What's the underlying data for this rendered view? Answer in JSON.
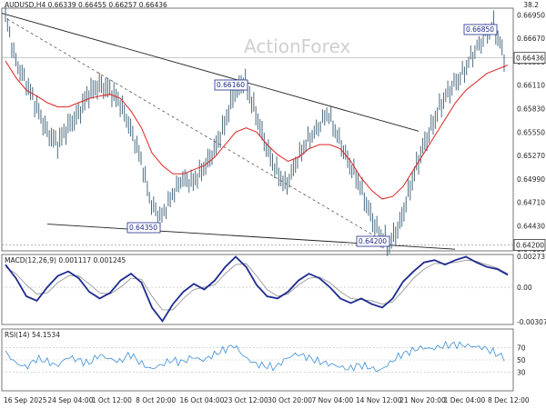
{
  "chart_data": [
    {
      "type": "line",
      "panel": "price",
      "symbol": "AUDUSD,H4",
      "ohlc_header": "AUDUSD,H4  0.66339 0.66455 0.66257 0.66436",
      "top_right_label": "38.2",
      "watermark": "ActionForex",
      "y_ticks": [
        "0.66950",
        "0.66670",
        "0.66390",
        "0.66110",
        "0.65830",
        "0.65550",
        "0.65270",
        "0.64990",
        "0.64710",
        "0.64430",
        "0.64150"
      ],
      "ylim": [
        0.6413,
        0.6703
      ],
      "current_price": "0.66436",
      "right_marker": "0.64200",
      "annotations": [
        "0.66850",
        "0.66160",
        "0.64350",
        "0.64200"
      ],
      "x_labels": [
        "16 Sep 2025",
        "24 Sep 04:00",
        "1 Oct 12:00",
        "8 Oct 20:00",
        "16 Oct 04:00",
        "23 Oct 12:00",
        "30 Oct 20:00",
        "7 Nov 04:00",
        "14 Nov 12:00",
        "21 Nov 20:00",
        "1 Dec 04:00",
        "8 Dec 12:00"
      ],
      "price_path": [
        0.6695,
        0.664,
        0.6615,
        0.6585,
        0.6555,
        0.654,
        0.656,
        0.6575,
        0.66,
        0.661,
        0.6605,
        0.659,
        0.656,
        0.6525,
        0.647,
        0.6455,
        0.648,
        0.65,
        0.6495,
        0.651,
        0.653,
        0.656,
        0.66,
        0.6616,
        0.658,
        0.654,
        0.651,
        0.649,
        0.652,
        0.6545,
        0.656,
        0.658,
        0.655,
        0.652,
        0.6495,
        0.646,
        0.643,
        0.642,
        0.6445,
        0.649,
        0.653,
        0.656,
        0.659,
        0.661,
        0.6625,
        0.665,
        0.6668,
        0.6685,
        0.6644
      ],
      "ma_path": [
        0.664,
        0.662,
        0.6605,
        0.6598,
        0.659,
        0.6585,
        0.6585,
        0.659,
        0.6595,
        0.6598,
        0.66,
        0.6595,
        0.658,
        0.656,
        0.653,
        0.6515,
        0.6505,
        0.6505,
        0.651,
        0.6515,
        0.6525,
        0.654,
        0.6555,
        0.656,
        0.6555,
        0.654,
        0.6528,
        0.652,
        0.6525,
        0.6535,
        0.654,
        0.654,
        0.6535,
        0.652,
        0.65,
        0.6485,
        0.6475,
        0.6478,
        0.649,
        0.651,
        0.653,
        0.655,
        0.657,
        0.659,
        0.6605,
        0.6615,
        0.6625,
        0.663,
        0.6635
      ]
    },
    {
      "type": "line",
      "panel": "macd",
      "title": "MACD(12,26,9) 0.001117 0.001245",
      "y_ticks": [
        "0.002731",
        "0.00",
        "-0.003077"
      ],
      "ylim": [
        -0.0033,
        0.0029
      ],
      "macd": [
        0.002,
        0.0008,
        -0.0008,
        -0.0012,
        0.0,
        0.001,
        0.0014,
        0.0008,
        -0.0004,
        -0.001,
        -0.0005,
        0.0006,
        0.0012,
        0.0004,
        -0.0018,
        -0.003,
        -0.0015,
        -0.0004,
        0.0003,
        -0.0002,
        0.0006,
        0.0018,
        0.0027,
        0.0018,
        0.0002,
        -0.0008,
        -0.001,
        -0.0004,
        0.0006,
        0.0012,
        0.0008,
        0.0,
        -0.001,
        -0.0014,
        -0.001,
        -0.0015,
        -0.0018,
        -0.001,
        0.0005,
        0.0014,
        0.0022,
        0.0024,
        0.002,
        0.0024,
        0.0027,
        0.0022,
        0.0018,
        0.0016,
        0.0011
      ],
      "signal": [
        0.0018,
        0.0012,
        0.0002,
        -0.0006,
        -0.0005,
        0.0004,
        0.001,
        0.001,
        0.0003,
        -0.0005,
        -0.0006,
        0.0,
        0.0008,
        0.0007,
        -0.0008,
        -0.002,
        -0.002,
        -0.001,
        -0.0002,
        0.0,
        0.0002,
        0.0012,
        0.002,
        0.0021,
        0.001,
        -0.0002,
        -0.0008,
        -0.0006,
        0.0002,
        0.0008,
        0.0009,
        0.0004,
        -0.0004,
        -0.001,
        -0.0011,
        -0.0012,
        -0.0015,
        -0.0013,
        -0.0003,
        0.0008,
        0.0016,
        0.0021,
        0.0021,
        0.0022,
        0.0024,
        0.0023,
        0.002,
        0.0017,
        0.0012
      ]
    },
    {
      "type": "line",
      "panel": "rsi",
      "title": "RSI(14) 54.1534",
      "y_ticks": [
        "70",
        "50",
        "30"
      ],
      "ylim": [
        0,
        100
      ],
      "rsi": [
        62,
        45,
        38,
        52,
        48,
        40,
        55,
        50,
        44,
        58,
        52,
        47,
        60,
        45,
        35,
        42,
        50,
        46,
        55,
        49,
        58,
        66,
        74,
        55,
        44,
        40,
        38,
        52,
        60,
        55,
        48,
        44,
        40,
        35,
        42,
        38,
        32,
        45,
        58,
        64,
        70,
        68,
        72,
        75,
        74,
        72,
        70,
        62,
        54
      ]
    }
  ]
}
